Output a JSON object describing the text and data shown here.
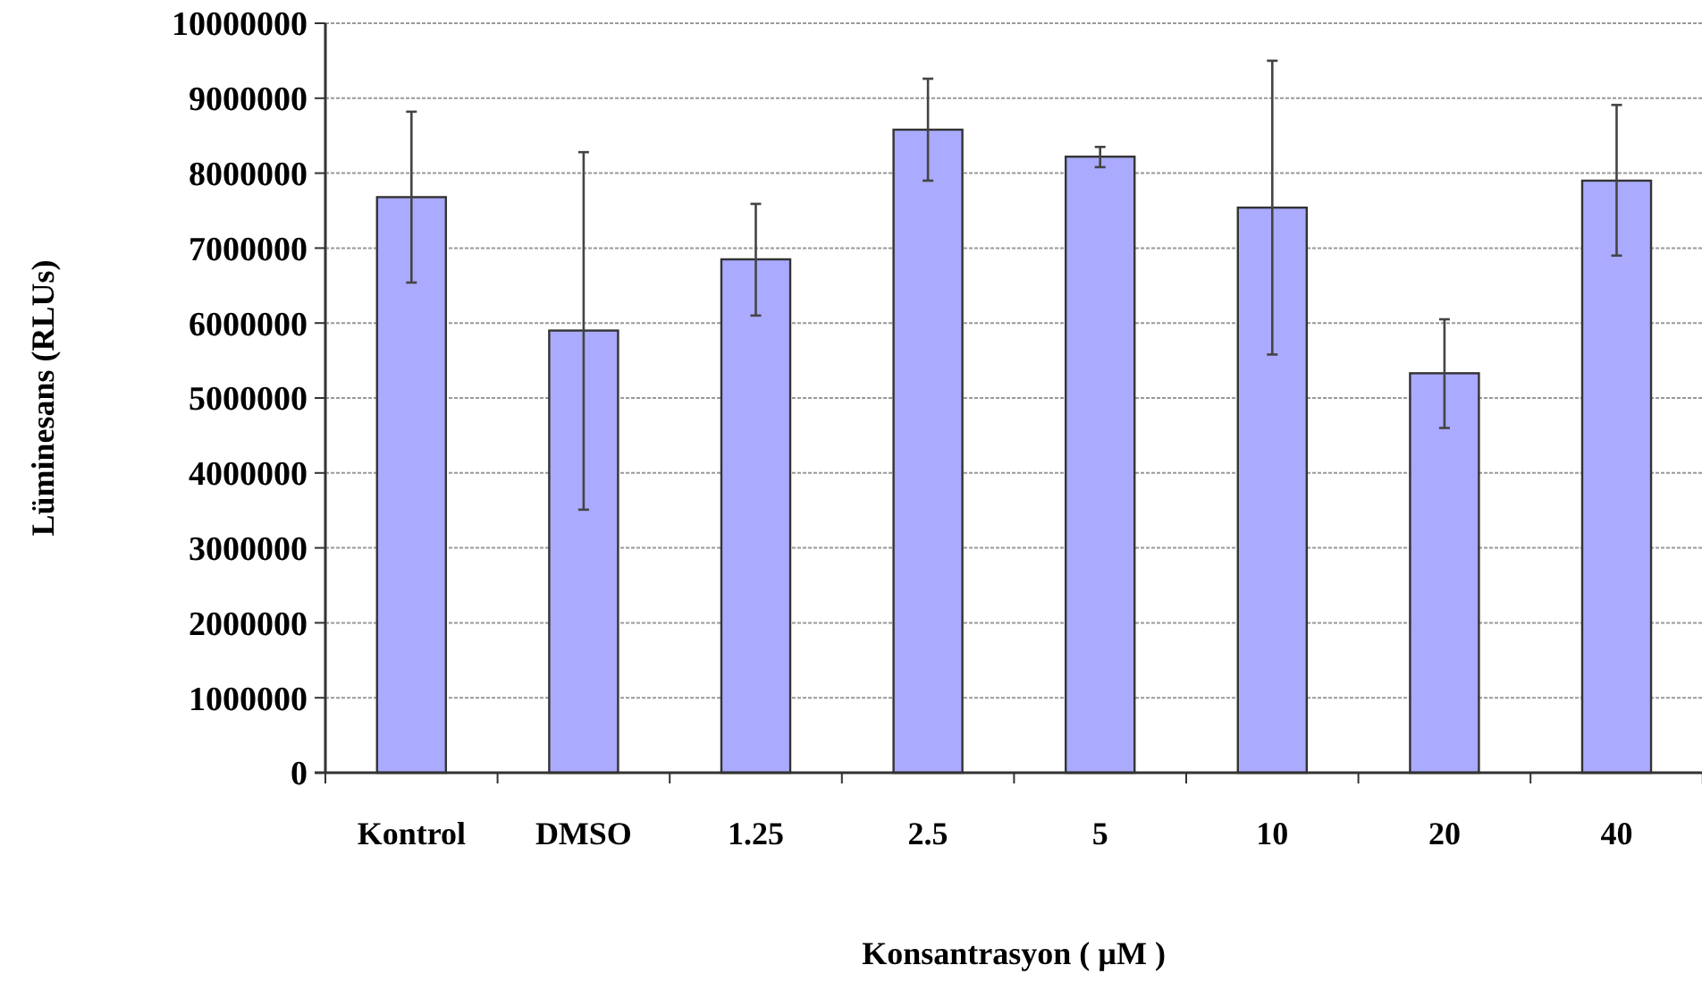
{
  "chart_data": {
    "type": "bar",
    "xlabel": "Konsantrasyon ( µM )",
    "ylabel": "Lüminesans (RLUs)",
    "categories": [
      "Kontrol",
      "DMSO",
      "1.25",
      "2.5",
      "5",
      "10",
      "20",
      "40"
    ],
    "values": [
      7680000,
      5900000,
      6850000,
      8580000,
      8220000,
      7540000,
      5330000,
      7900000
    ],
    "errors": [
      [
        6540000,
        8820000
      ],
      [
        3510000,
        8280000
      ],
      [
        6100000,
        7590000
      ],
      [
        7900000,
        9260000
      ],
      [
        8080000,
        8350000
      ],
      [
        5580000,
        9500000
      ],
      [
        4600000,
        6050000
      ],
      [
        6900000,
        8910000
      ]
    ],
    "color": "#aaaaff",
    "ylim": [
      0,
      10000000
    ],
    "yticks": [
      0,
      1000000,
      2000000,
      3000000,
      4000000,
      5000000,
      6000000,
      7000000,
      8000000,
      9000000,
      10000000
    ],
    "grid": "y"
  }
}
